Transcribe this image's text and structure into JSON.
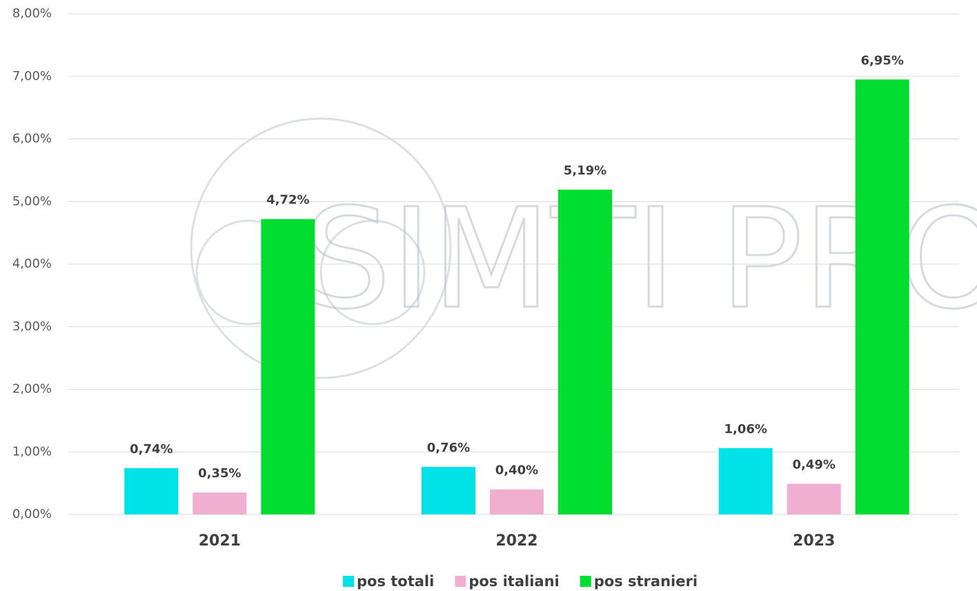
{
  "chart_data": {
    "type": "bar",
    "watermark": "SIMTI PRO",
    "categories": [
      "2021",
      "2022",
      "2023"
    ],
    "series": [
      {
        "name": "pos totali",
        "color": "#00e1e8",
        "values": [
          0.74,
          0.76,
          1.06
        ],
        "value_labels": [
          "0,74%",
          "0,76%",
          "1,06%"
        ]
      },
      {
        "name": "pos italiani",
        "color": "#f0aed0",
        "values": [
          0.35,
          0.4,
          0.49
        ],
        "value_labels": [
          "0,35%",
          "0,40%",
          "0,49%"
        ]
      },
      {
        "name": "pos stranieri",
        "color": "#00dd30",
        "values": [
          4.72,
          5.19,
          6.95
        ],
        "value_labels": [
          "4,72%",
          "5,19%",
          "6,95%"
        ]
      }
    ],
    "ylim": [
      0,
      8
    ],
    "yticks": [
      {
        "value": 0,
        "label": "0,00%"
      },
      {
        "value": 1,
        "label": "1,00%"
      },
      {
        "value": 2,
        "label": "2,00%"
      },
      {
        "value": 3,
        "label": "3,00%"
      },
      {
        "value": 4,
        "label": "4,00%"
      },
      {
        "value": 5,
        "label": "5,00%"
      },
      {
        "value": 6,
        "label": "6,00%"
      },
      {
        "value": 7,
        "label": "7,00%"
      },
      {
        "value": 8,
        "label": "8,00%"
      }
    ],
    "grid": true,
    "legend": "bottom"
  }
}
